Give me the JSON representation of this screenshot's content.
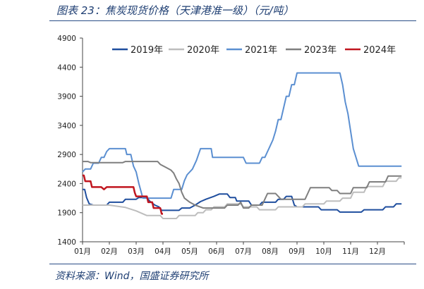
{
  "figure": {
    "title": "图表 23：焦炭现货价格（天津港准一级）（元/吨）",
    "source": "资料来源：Wind，国盛证券研究所"
  },
  "chart_data": {
    "type": "line",
    "title": "",
    "xlabel": "",
    "ylabel": "",
    "x_ticks": [
      "01月",
      "02月",
      "03月",
      "04月",
      "05月",
      "06月",
      "07月",
      "08月",
      "09月",
      "10月",
      "11月",
      "12月"
    ],
    "y_ticks": [
      1400,
      1900,
      2400,
      2900,
      3400,
      3900,
      4400,
      4900
    ],
    "ylim": [
      1400,
      4900
    ],
    "xlim": [
      1,
      13
    ],
    "grid": false,
    "legend_position": "top",
    "series": [
      {
        "name": "2019年",
        "color": "#1f4e9e",
        "width": 2,
        "points": [
          [
            1.0,
            2300
          ],
          [
            1.08,
            2300
          ],
          [
            1.15,
            2160
          ],
          [
            1.25,
            2050
          ],
          [
            1.4,
            2030
          ],
          [
            1.9,
            2030
          ],
          [
            2.0,
            2080
          ],
          [
            2.5,
            2080
          ],
          [
            2.6,
            2130
          ],
          [
            3.0,
            2130
          ],
          [
            3.1,
            2160
          ],
          [
            3.4,
            2160
          ],
          [
            3.5,
            2100
          ],
          [
            3.7,
            2030
          ],
          [
            3.85,
            2000
          ],
          [
            3.95,
            1940
          ],
          [
            4.6,
            1940
          ],
          [
            4.7,
            1980
          ],
          [
            5.0,
            1980
          ],
          [
            5.2,
            2030
          ],
          [
            5.4,
            2090
          ],
          [
            5.6,
            2130
          ],
          [
            5.9,
            2180
          ],
          [
            6.1,
            2220
          ],
          [
            6.4,
            2220
          ],
          [
            6.5,
            2160
          ],
          [
            6.7,
            2160
          ],
          [
            6.75,
            2100
          ],
          [
            7.2,
            2100
          ],
          [
            7.3,
            2030
          ],
          [
            7.6,
            2030
          ],
          [
            7.7,
            2080
          ],
          [
            8.2,
            2080
          ],
          [
            8.3,
            2130
          ],
          [
            8.5,
            2130
          ],
          [
            8.6,
            2180
          ],
          [
            8.8,
            2180
          ],
          [
            8.9,
            2030
          ],
          [
            9.0,
            2000
          ],
          [
            9.8,
            2000
          ],
          [
            9.9,
            1950
          ],
          [
            10.5,
            1950
          ],
          [
            10.6,
            1910
          ],
          [
            11.4,
            1910
          ],
          [
            11.5,
            1950
          ],
          [
            12.2,
            1950
          ],
          [
            12.3,
            2000
          ],
          [
            12.6,
            2000
          ],
          [
            12.7,
            2050
          ],
          [
            12.9,
            2050
          ]
        ]
      },
      {
        "name": "2020年",
        "color": "#bdbdbd",
        "width": 2,
        "points": [
          [
            1.0,
            2030
          ],
          [
            2.0,
            2030
          ],
          [
            2.6,
            1990
          ],
          [
            3.0,
            1930
          ],
          [
            3.4,
            1850
          ],
          [
            3.9,
            1850
          ],
          [
            4.0,
            1800
          ],
          [
            4.5,
            1800
          ],
          [
            4.6,
            1850
          ],
          [
            5.2,
            1850
          ],
          [
            5.3,
            1900
          ],
          [
            5.5,
            1900
          ],
          [
            5.6,
            1950
          ],
          [
            5.8,
            1950
          ],
          [
            5.9,
            2000
          ],
          [
            6.3,
            2000
          ],
          [
            6.4,
            2050
          ],
          [
            6.9,
            2050
          ],
          [
            7.0,
            2000
          ],
          [
            7.5,
            2000
          ],
          [
            7.6,
            1950
          ],
          [
            8.2,
            1950
          ],
          [
            8.3,
            2000
          ],
          [
            9.2,
            2000
          ],
          [
            9.3,
            2050
          ],
          [
            10.0,
            2050
          ],
          [
            10.1,
            2100
          ],
          [
            10.6,
            2100
          ],
          [
            10.7,
            2150
          ],
          [
            11.0,
            2150
          ],
          [
            11.1,
            2250
          ],
          [
            11.5,
            2250
          ],
          [
            11.6,
            2350
          ],
          [
            12.2,
            2350
          ],
          [
            12.3,
            2440
          ],
          [
            12.7,
            2440
          ],
          [
            12.8,
            2500
          ],
          [
            12.9,
            2500
          ]
        ]
      },
      {
        "name": "2021年",
        "color": "#5b8fd1",
        "width": 2,
        "points": [
          [
            1.0,
            2600
          ],
          [
            1.1,
            2650
          ],
          [
            1.3,
            2650
          ],
          [
            1.4,
            2750
          ],
          [
            1.6,
            2750
          ],
          [
            1.7,
            2850
          ],
          [
            1.8,
            2850
          ],
          [
            1.9,
            2950
          ],
          [
            2.0,
            3000
          ],
          [
            2.6,
            3000
          ],
          [
            2.65,
            2900
          ],
          [
            2.8,
            2900
          ],
          [
            2.9,
            2700
          ],
          [
            3.0,
            2600
          ],
          [
            3.1,
            2400
          ],
          [
            3.25,
            2150
          ],
          [
            4.3,
            2150
          ],
          [
            4.4,
            2300
          ],
          [
            4.7,
            2300
          ],
          [
            4.8,
            2450
          ],
          [
            4.9,
            2550
          ],
          [
            5.1,
            2650
          ],
          [
            5.25,
            2800
          ],
          [
            5.4,
            3000
          ],
          [
            5.8,
            3000
          ],
          [
            5.85,
            2850
          ],
          [
            7.0,
            2850
          ],
          [
            7.1,
            2750
          ],
          [
            7.6,
            2750
          ],
          [
            7.7,
            2850
          ],
          [
            7.8,
            2850
          ],
          [
            7.9,
            2950
          ],
          [
            8.0,
            3050
          ],
          [
            8.1,
            3150
          ],
          [
            8.2,
            3300
          ],
          [
            8.3,
            3500
          ],
          [
            8.4,
            3500
          ],
          [
            8.5,
            3700
          ],
          [
            8.6,
            3900
          ],
          [
            8.7,
            3900
          ],
          [
            8.8,
            4100
          ],
          [
            8.9,
            4100
          ],
          [
            9.0,
            4300
          ],
          [
            10.6,
            4300
          ],
          [
            10.7,
            4100
          ],
          [
            10.8,
            3800
          ],
          [
            10.9,
            3600
          ],
          [
            11.0,
            3300
          ],
          [
            11.1,
            3000
          ],
          [
            11.2,
            2850
          ],
          [
            11.3,
            2700
          ],
          [
            12.9,
            2700
          ]
        ]
      },
      {
        "name": "2023年",
        "color": "#7f7f7f",
        "width": 2,
        "points": [
          [
            1.0,
            2780
          ],
          [
            1.2,
            2780
          ],
          [
            1.3,
            2760
          ],
          [
            2.5,
            2760
          ],
          [
            2.6,
            2780
          ],
          [
            3.8,
            2780
          ],
          [
            3.9,
            2730
          ],
          [
            4.1,
            2680
          ],
          [
            4.3,
            2630
          ],
          [
            4.4,
            2580
          ],
          [
            4.5,
            2480
          ],
          [
            4.6,
            2400
          ],
          [
            4.7,
            2250
          ],
          [
            4.8,
            2150
          ],
          [
            5.0,
            2080
          ],
          [
            5.2,
            2030
          ],
          [
            5.5,
            1980
          ],
          [
            6.3,
            1980
          ],
          [
            6.4,
            2030
          ],
          [
            6.8,
            2030
          ],
          [
            6.9,
            2080
          ],
          [
            7.0,
            1980
          ],
          [
            7.2,
            1980
          ],
          [
            7.3,
            2030
          ],
          [
            7.7,
            2030
          ],
          [
            7.8,
            2130
          ],
          [
            7.9,
            2230
          ],
          [
            8.2,
            2230
          ],
          [
            8.3,
            2180
          ],
          [
            8.4,
            2130
          ],
          [
            9.3,
            2130
          ],
          [
            9.4,
            2230
          ],
          [
            9.5,
            2330
          ],
          [
            10.2,
            2330
          ],
          [
            10.3,
            2280
          ],
          [
            10.5,
            2280
          ],
          [
            10.6,
            2230
          ],
          [
            11.0,
            2230
          ],
          [
            11.1,
            2330
          ],
          [
            11.6,
            2330
          ],
          [
            11.7,
            2430
          ],
          [
            12.3,
            2430
          ],
          [
            12.4,
            2530
          ],
          [
            12.9,
            2530
          ]
        ]
      },
      {
        "name": "2024年",
        "color": "#c0161f",
        "width": 2.5,
        "points": [
          [
            1.0,
            2540
          ],
          [
            1.05,
            2540
          ],
          [
            1.1,
            2440
          ],
          [
            1.3,
            2440
          ],
          [
            1.35,
            2340
          ],
          [
            1.7,
            2340
          ],
          [
            1.8,
            2300
          ],
          [
            1.9,
            2340
          ],
          [
            2.9,
            2340
          ],
          [
            2.95,
            2240
          ],
          [
            3.0,
            2180
          ],
          [
            3.4,
            2180
          ],
          [
            3.45,
            2080
          ],
          [
            3.6,
            2080
          ],
          [
            3.65,
            1980
          ],
          [
            3.9,
            1980
          ],
          [
            3.95,
            1880
          ],
          [
            4.0,
            1880
          ]
        ]
      }
    ]
  }
}
